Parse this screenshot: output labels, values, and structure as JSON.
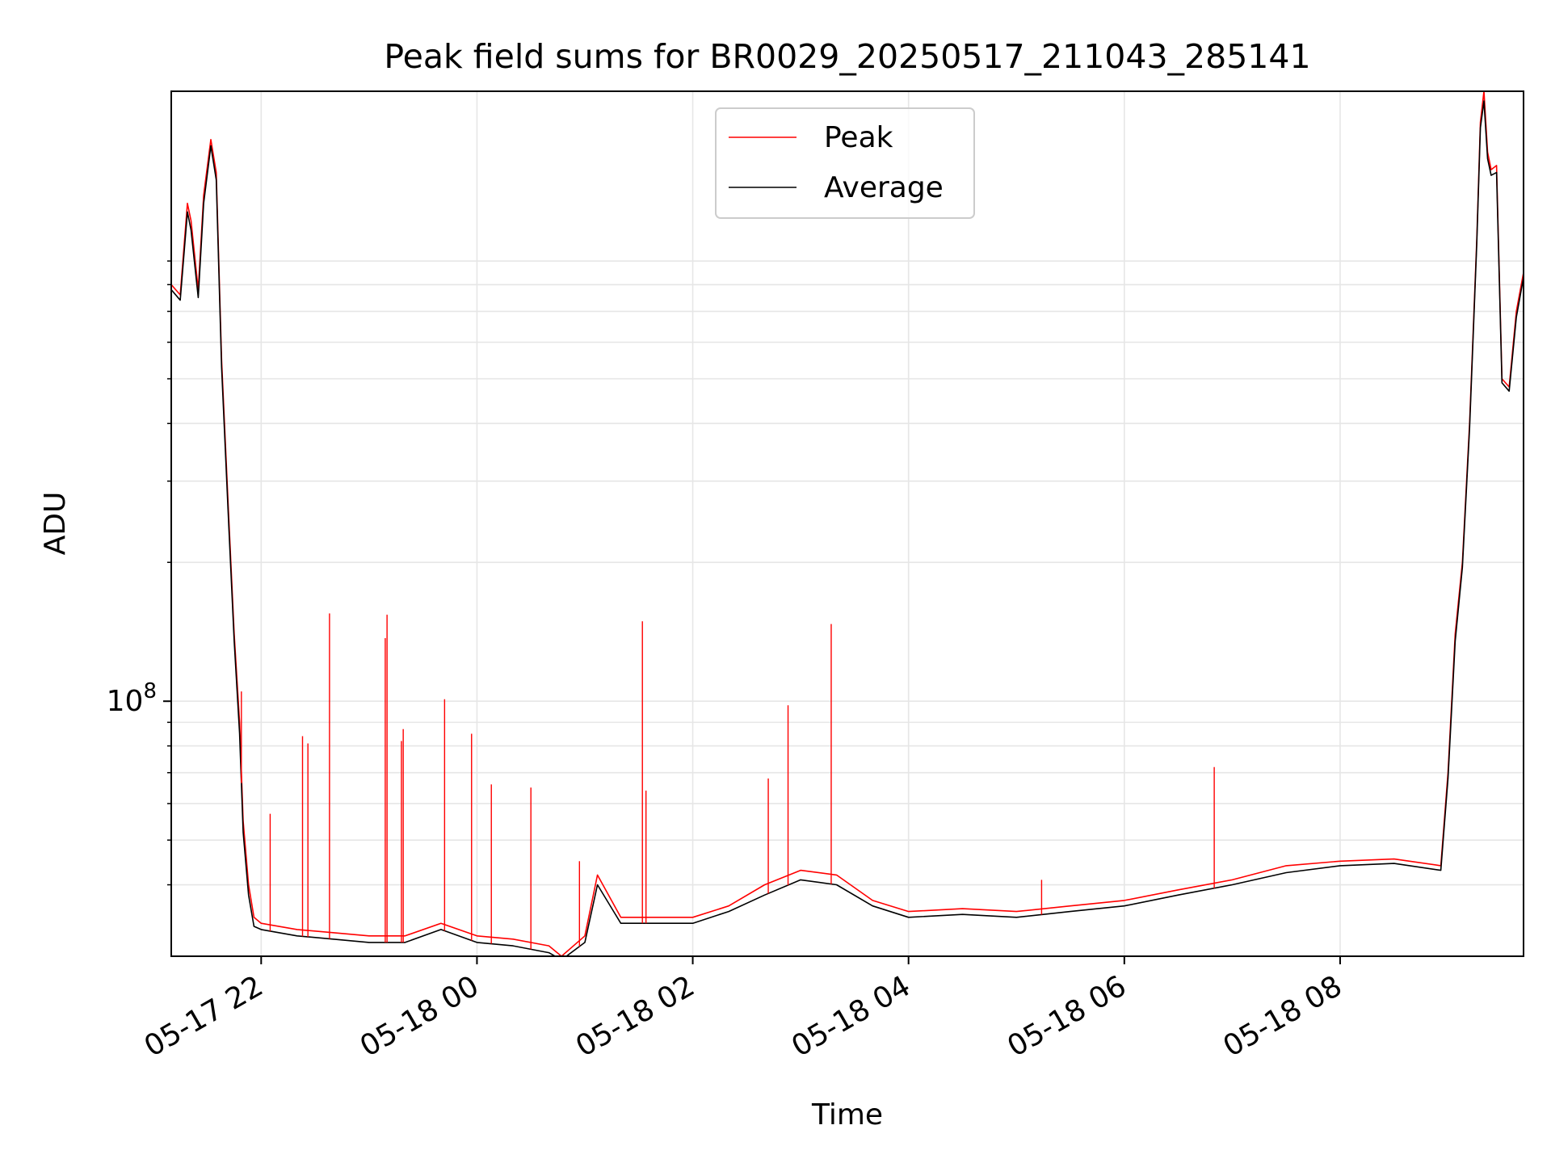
{
  "chart_data": {
    "type": "line",
    "title": "Peak field sums for BR0029_20250517_211043_285141",
    "xlabel": "Time",
    "ylabel": "ADU",
    "yscale": "log",
    "grid": true,
    "legend_position": "top-center",
    "xlim": [
      "2025-05-17 21:10",
      "2025-05-18 09:42"
    ],
    "ylim": [
      28000000,
      2100000000
    ],
    "x_ticks": [
      "2025-05-17 22:00",
      "2025-05-18 00:00",
      "2025-05-18 02:00",
      "2025-05-18 04:00",
      "2025-05-18 06:00",
      "2025-05-18 08:00"
    ],
    "x_tick_labels": [
      "05-17 22",
      "05-18 00",
      "05-18 02",
      "05-18 04",
      "05-18 06",
      "05-18 08"
    ],
    "y_tick_labels": [
      {
        "value": 100000000,
        "base": "10",
        "exponent": "8"
      }
    ],
    "y_minor_ticks": [
      40000000,
      50000000,
      60000000,
      70000000,
      80000000,
      90000000,
      200000000,
      300000000,
      400000000,
      500000000,
      600000000,
      700000000,
      800000000,
      900000000
    ],
    "series": [
      {
        "name": "Peak",
        "color": "#ff0000",
        "x": [
          "2025-05-17 21:10",
          "2025-05-17 21:15",
          "2025-05-17 21:19",
          "2025-05-17 21:21",
          "2025-05-17 21:25",
          "2025-05-17 21:28",
          "2025-05-17 21:32",
          "2025-05-17 21:35",
          "2025-05-17 21:38",
          "2025-05-17 21:42",
          "2025-05-17 21:45",
          "2025-05-17 21:48",
          "2025-05-17 21:50",
          "2025-05-17 21:53",
          "2025-05-17 21:56",
          "2025-05-17 22:00",
          "2025-05-17 22:20",
          "2025-05-17 22:40",
          "2025-05-17 23:00",
          "2025-05-17 23:20",
          "2025-05-17 23:40",
          "2025-05-18 00:00",
          "2025-05-18 00:20",
          "2025-05-18 00:40",
          "2025-05-18 00:47",
          "2025-05-18 01:00",
          "2025-05-18 01:07",
          "2025-05-18 01:20",
          "2025-05-18 01:40",
          "2025-05-18 02:00",
          "2025-05-18 02:20",
          "2025-05-18 02:40",
          "2025-05-18 03:00",
          "2025-05-18 03:20",
          "2025-05-18 03:40",
          "2025-05-18 04:00",
          "2025-05-18 04:30",
          "2025-05-18 05:00",
          "2025-05-18 05:30",
          "2025-05-18 06:00",
          "2025-05-18 06:30",
          "2025-05-18 07:00",
          "2025-05-18 07:30",
          "2025-05-18 08:00",
          "2025-05-18 08:30",
          "2025-05-18 08:56",
          "2025-05-18 09:00",
          "2025-05-18 09:04",
          "2025-05-18 09:08",
          "2025-05-18 09:12",
          "2025-05-18 09:16",
          "2025-05-18 09:18",
          "2025-05-18 09:20",
          "2025-05-18 09:22",
          "2025-05-18 09:24",
          "2025-05-18 09:27",
          "2025-05-18 09:30",
          "2025-05-18 09:34",
          "2025-05-18 09:38",
          "2025-05-18 09:42"
        ],
        "values": [
          800000000,
          760000000,
          1200000000,
          1100000000,
          780000000,
          1250000000,
          1650000000,
          1400000000,
          550000000,
          250000000,
          140000000,
          90000000,
          55000000,
          40000000,
          34000000,
          33000000,
          32000000,
          31500000,
          31000000,
          31000000,
          33000000,
          31000000,
          30500000,
          29500000,
          28000000,
          31000000,
          42000000,
          34000000,
          34000000,
          34000000,
          36000000,
          40000000,
          43000000,
          42000000,
          37000000,
          35000000,
          35500000,
          35000000,
          36000000,
          37000000,
          39000000,
          41000000,
          44000000,
          45000000,
          45500000,
          44000000,
          70000000,
          140000000,
          200000000,
          400000000,
          1000000000,
          1800000000,
          2100000000,
          1550000000,
          1420000000,
          1450000000,
          500000000,
          480000000,
          700000000,
          850000000
        ]
      },
      {
        "name": "Average",
        "color": "#000000",
        "x": [
          "2025-05-17 21:10",
          "2025-05-17 21:15",
          "2025-05-17 21:19",
          "2025-05-17 21:21",
          "2025-05-17 21:25",
          "2025-05-17 21:28",
          "2025-05-17 21:32",
          "2025-05-17 21:35",
          "2025-05-17 21:38",
          "2025-05-17 21:42",
          "2025-05-17 21:45",
          "2025-05-17 21:48",
          "2025-05-17 21:50",
          "2025-05-17 21:53",
          "2025-05-17 21:56",
          "2025-05-17 22:00",
          "2025-05-17 22:20",
          "2025-05-17 22:40",
          "2025-05-17 23:00",
          "2025-05-17 23:20",
          "2025-05-17 23:40",
          "2025-05-18 00:00",
          "2025-05-18 00:20",
          "2025-05-18 00:40",
          "2025-05-18 00:47",
          "2025-05-18 01:00",
          "2025-05-18 01:07",
          "2025-05-18 01:20",
          "2025-05-18 01:40",
          "2025-05-18 02:00",
          "2025-05-18 02:20",
          "2025-05-18 02:40",
          "2025-05-18 03:00",
          "2025-05-18 03:20",
          "2025-05-18 03:40",
          "2025-05-18 04:00",
          "2025-05-18 04:30",
          "2025-05-18 05:00",
          "2025-05-18 05:30",
          "2025-05-18 06:00",
          "2025-05-18 06:30",
          "2025-05-18 07:00",
          "2025-05-18 07:30",
          "2025-05-18 08:00",
          "2025-05-18 08:30",
          "2025-05-18 08:56",
          "2025-05-18 09:00",
          "2025-05-18 09:04",
          "2025-05-18 09:08",
          "2025-05-18 09:12",
          "2025-05-18 09:16",
          "2025-05-18 09:18",
          "2025-05-18 09:20",
          "2025-05-18 09:22",
          "2025-05-18 09:24",
          "2025-05-18 09:27",
          "2025-05-18 09:30",
          "2025-05-18 09:34",
          "2025-05-18 09:38",
          "2025-05-18 09:42"
        ],
        "values": [
          780000000,
          740000000,
          1150000000,
          1050000000,
          750000000,
          1200000000,
          1600000000,
          1350000000,
          530000000,
          240000000,
          135000000,
          85000000,
          52000000,
          38000000,
          32500000,
          32000000,
          31000000,
          30500000,
          30000000,
          30000000,
          32000000,
          30000000,
          29500000,
          28500000,
          27500000,
          30000000,
          40000000,
          33000000,
          33000000,
          33000000,
          35000000,
          38000000,
          41000000,
          40000000,
          36000000,
          34000000,
          34500000,
          34000000,
          35000000,
          36000000,
          38000000,
          40000000,
          42500000,
          44000000,
          44500000,
          43000000,
          68000000,
          135000000,
          195000000,
          390000000,
          980000000,
          1750000000,
          2000000000,
          1500000000,
          1380000000,
          1400000000,
          490000000,
          470000000,
          680000000,
          830000000
        ]
      }
    ],
    "peak_spikes": [
      {
        "x": "2025-05-17 21:49",
        "value": 105000000
      },
      {
        "x": "2025-05-17 22:05",
        "value": 57000000
      },
      {
        "x": "2025-05-17 22:23",
        "value": 84000000
      },
      {
        "x": "2025-05-17 22:26",
        "value": 81000000
      },
      {
        "x": "2025-05-17 22:38",
        "value": 155000000
      },
      {
        "x": "2025-05-17 23:09",
        "value": 137000000
      },
      {
        "x": "2025-05-17 23:10",
        "value": 154000000
      },
      {
        "x": "2025-05-17 23:18",
        "value": 82000000
      },
      {
        "x": "2025-05-17 23:19",
        "value": 87000000
      },
      {
        "x": "2025-05-17 23:42",
        "value": 101000000
      },
      {
        "x": "2025-05-17 23:57",
        "value": 85000000
      },
      {
        "x": "2025-05-18 00:08",
        "value": 66000000
      },
      {
        "x": "2025-05-18 00:30",
        "value": 65000000
      },
      {
        "x": "2025-05-18 00:57",
        "value": 45000000
      },
      {
        "x": "2025-05-18 01:32",
        "value": 149000000
      },
      {
        "x": "2025-05-18 01:34",
        "value": 64000000
      },
      {
        "x": "2025-05-18 02:42",
        "value": 68000000
      },
      {
        "x": "2025-05-18 02:53",
        "value": 98000000
      },
      {
        "x": "2025-05-18 03:17",
        "value": 147000000
      },
      {
        "x": "2025-05-18 05:14",
        "value": 41000000
      },
      {
        "x": "2025-05-18 06:50",
        "value": 72000000
      }
    ],
    "legend": [
      {
        "label": "Peak",
        "color": "#ff0000"
      },
      {
        "label": "Average",
        "color": "#000000"
      }
    ]
  }
}
